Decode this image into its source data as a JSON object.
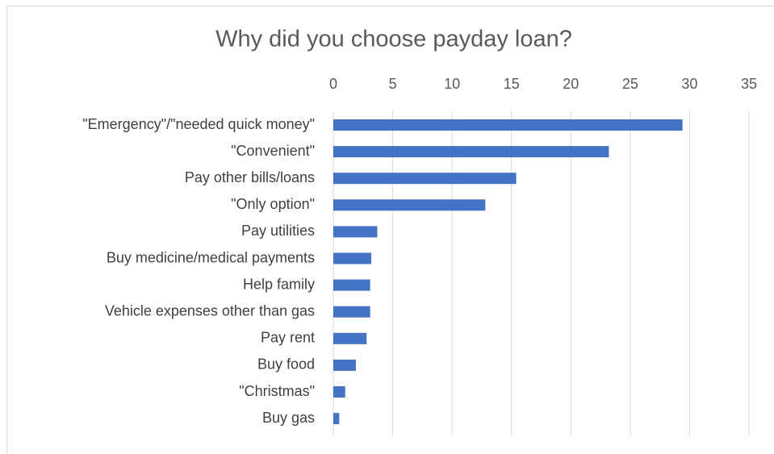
{
  "chart_data": {
    "type": "bar",
    "orientation": "horizontal",
    "title": "Why did you choose payday loan?",
    "categories": [
      "\"Emergency\"/\"needed quick money\"",
      "\"Convenient\"",
      "Pay other bills/loans",
      "\"Only option\"",
      "Pay utilities",
      "Buy medicine/medical payments",
      "Help family",
      "Vehicle expenses other than gas",
      "Pay rent",
      "Buy food",
      "\"Christmas\"",
      "Buy gas"
    ],
    "values": [
      29.4,
      23.2,
      15.4,
      12.8,
      3.7,
      3.2,
      3.1,
      3.1,
      2.8,
      1.9,
      1.0,
      0.5
    ],
    "color": "#4472c4",
    "xlim": [
      0,
      35
    ],
    "xticks": [
      0,
      5,
      10,
      15,
      20,
      25,
      30,
      35
    ],
    "grid": true
  }
}
